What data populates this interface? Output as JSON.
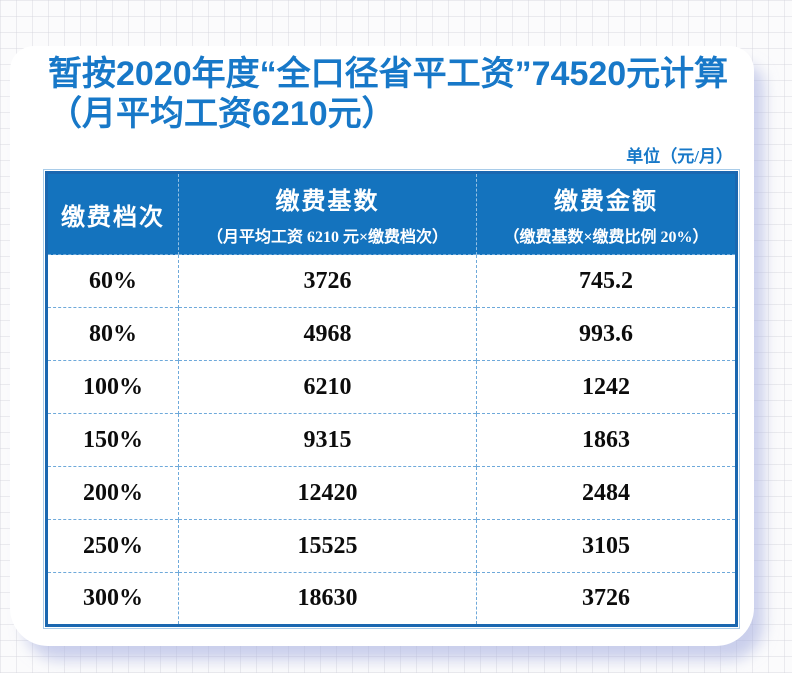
{
  "page": {
    "title": "暂按2020年度“全口径省平工资”74520元计算（月平均工资6210元）",
    "unit_label": "单位（元/月）"
  },
  "table": {
    "columns": [
      {
        "label": "缴费档次",
        "sublabel": ""
      },
      {
        "label": "缴费基数",
        "sublabel": "（月平均工资 6210 元×缴费档次）"
      },
      {
        "label": "缴费金额",
        "sublabel": "（缴费基数×缴费比例 20%）"
      }
    ],
    "rows": [
      [
        "60%",
        "3726",
        "745.2"
      ],
      [
        "80%",
        "4968",
        "993.6"
      ],
      [
        "100%",
        "6210",
        "1242"
      ],
      [
        "150%",
        "9315",
        "1863"
      ],
      [
        "200%",
        "12420",
        "2484"
      ],
      [
        "250%",
        "15525",
        "3105"
      ],
      [
        "300%",
        "18630",
        "3726"
      ]
    ]
  },
  "colors": {
    "title_blue": "#1778c8",
    "header_blue": "#1473be",
    "table_border_blue": "#1a67b0",
    "table_outline_blue": "#a9cce9",
    "cell_dash_blue": "#6ea9da",
    "card_shadow": "#aab2e1",
    "body_text": "#0c0c0c"
  }
}
